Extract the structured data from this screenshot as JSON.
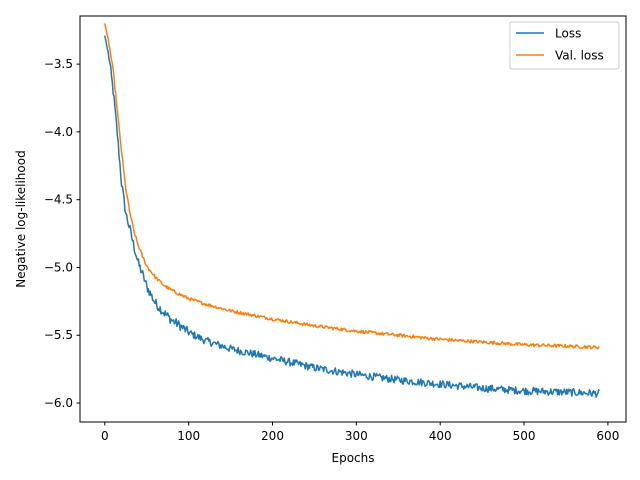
{
  "chart_data": {
    "type": "line",
    "title": "",
    "xlabel": "Epochs",
    "ylabel": "Negative log-likelihood",
    "xlim": [
      -29.6,
      621.6
    ],
    "ylim": [
      -6.14,
      -3.145
    ],
    "xticks": [
      0,
      100,
      200,
      300,
      400,
      500,
      600
    ],
    "yticks": [
      -6.0,
      -5.5,
      -5.0,
      -4.5,
      -4.0,
      -3.5
    ],
    "grid": false,
    "legend": "top-right",
    "series": [
      {
        "name": "Loss",
        "color": "#1f77b4",
        "points": [
          [
            0,
            -3.29
          ],
          [
            5,
            -3.45
          ],
          [
            10,
            -3.7
          ],
          [
            15,
            -4.02
          ],
          [
            20,
            -4.38
          ],
          [
            25,
            -4.6
          ],
          [
            30,
            -4.72
          ],
          [
            35,
            -4.85
          ],
          [
            40,
            -4.97
          ],
          [
            45,
            -5.05
          ],
          [
            50,
            -5.14
          ],
          [
            60,
            -5.26
          ],
          [
            70,
            -5.33
          ],
          [
            80,
            -5.39
          ],
          [
            90,
            -5.43
          ],
          [
            100,
            -5.48
          ],
          [
            120,
            -5.54
          ],
          [
            150,
            -5.6
          ],
          [
            200,
            -5.67
          ],
          [
            250,
            -5.74
          ],
          [
            300,
            -5.79
          ],
          [
            350,
            -5.83
          ],
          [
            400,
            -5.86
          ],
          [
            450,
            -5.89
          ],
          [
            500,
            -5.91
          ],
          [
            550,
            -5.92
          ],
          [
            590,
            -5.93
          ]
        ]
      },
      {
        "name": "Val. loss",
        "color": "#ff7f0e",
        "points": [
          [
            0,
            -3.2
          ],
          [
            5,
            -3.35
          ],
          [
            10,
            -3.55
          ],
          [
            15,
            -3.85
          ],
          [
            20,
            -4.15
          ],
          [
            25,
            -4.42
          ],
          [
            30,
            -4.6
          ],
          [
            35,
            -4.74
          ],
          [
            40,
            -4.84
          ],
          [
            45,
            -4.92
          ],
          [
            50,
            -4.99
          ],
          [
            60,
            -5.07
          ],
          [
            70,
            -5.13
          ],
          [
            80,
            -5.17
          ],
          [
            90,
            -5.2
          ],
          [
            100,
            -5.23
          ],
          [
            120,
            -5.27
          ],
          [
            150,
            -5.32
          ],
          [
            200,
            -5.38
          ],
          [
            250,
            -5.43
          ],
          [
            300,
            -5.47
          ],
          [
            350,
            -5.5
          ],
          [
            400,
            -5.53
          ],
          [
            450,
            -5.55
          ],
          [
            500,
            -5.57
          ],
          [
            550,
            -5.58
          ],
          [
            590,
            -5.59
          ]
        ]
      }
    ]
  }
}
